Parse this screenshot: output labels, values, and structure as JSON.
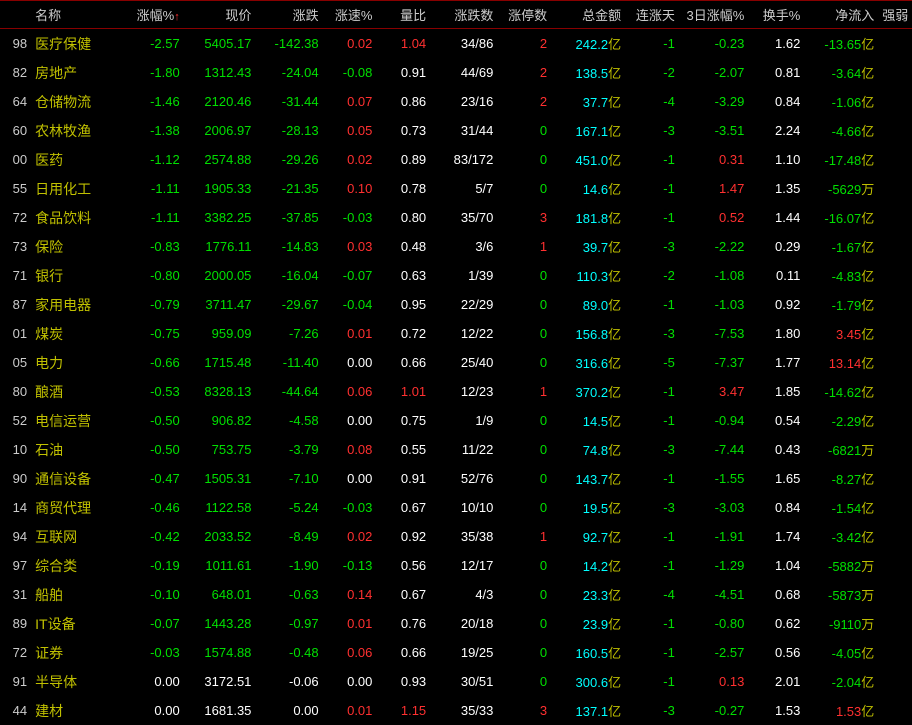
{
  "colors": {
    "bg": "#000000",
    "header_text": "#cccccc",
    "name_text": "#c0c000",
    "red": "#ff3030",
    "green": "#00e000",
    "cyan": "#00ffff",
    "white": "#ffffff",
    "yellow": "#c0c000",
    "gray": "#cccccc",
    "border": "#880000"
  },
  "columns": [
    {
      "key": "code",
      "label": "",
      "align": "right"
    },
    {
      "key": "name",
      "label": "名称",
      "align": "left"
    },
    {
      "key": "pct",
      "label": "涨幅%",
      "arrow": "↑",
      "align": "right"
    },
    {
      "key": "price",
      "label": "现价",
      "align": "right"
    },
    {
      "key": "change",
      "label": "涨跌",
      "align": "right"
    },
    {
      "key": "speed",
      "label": "涨速%",
      "align": "right"
    },
    {
      "key": "ratio",
      "label": "量比",
      "align": "right"
    },
    {
      "key": "updown",
      "label": "涨跌数",
      "align": "right"
    },
    {
      "key": "limit",
      "label": "涨停数",
      "align": "right"
    },
    {
      "key": "amount",
      "label": "总金额",
      "align": "right"
    },
    {
      "key": "days",
      "label": "连涨天",
      "align": "right"
    },
    {
      "key": "pct3",
      "label": "3日涨幅%",
      "align": "right"
    },
    {
      "key": "turn",
      "label": "换手%",
      "align": "right"
    },
    {
      "key": "netin",
      "label": "净流入",
      "align": "right"
    },
    {
      "key": "strong",
      "label": "强弱",
      "align": "right"
    }
  ],
  "unit_yi": "亿",
  "unit_wan": "万",
  "rows": [
    {
      "code": "98",
      "name": "医疗保健",
      "pct": "-2.57",
      "price": "5405.17",
      "change": "-142.38",
      "speed": "0.02",
      "ratio": "1.04",
      "updown": "34/86",
      "limit": "2",
      "amount": "242.2",
      "amount_unit": "亿",
      "days": "-1",
      "pct3": "-0.23",
      "turn": "1.62",
      "netin": "-13.65",
      "netin_unit": "亿"
    },
    {
      "code": "82",
      "name": "房地产",
      "pct": "-1.80",
      "price": "1312.43",
      "change": "-24.04",
      "speed": "-0.08",
      "ratio": "0.91",
      "updown": "44/69",
      "limit": "2",
      "amount": "138.5",
      "amount_unit": "亿",
      "days": "-2",
      "pct3": "-2.07",
      "turn": "0.81",
      "netin": "-3.64",
      "netin_unit": "亿"
    },
    {
      "code": "64",
      "name": "仓储物流",
      "pct": "-1.46",
      "price": "2120.46",
      "change": "-31.44",
      "speed": "0.07",
      "ratio": "0.86",
      "updown": "23/16",
      "limit": "2",
      "amount": "37.7",
      "amount_unit": "亿",
      "days": "-4",
      "pct3": "-3.29",
      "turn": "0.84",
      "netin": "-1.06",
      "netin_unit": "亿"
    },
    {
      "code": "60",
      "name": "农林牧渔",
      "pct": "-1.38",
      "price": "2006.97",
      "change": "-28.13",
      "speed": "0.05",
      "ratio": "0.73",
      "updown": "31/44",
      "limit": "0",
      "amount": "167.1",
      "amount_unit": "亿",
      "days": "-3",
      "pct3": "-3.51",
      "turn": "2.24",
      "netin": "-4.66",
      "netin_unit": "亿"
    },
    {
      "code": "00",
      "name": "医药",
      "pct": "-1.12",
      "price": "2574.88",
      "change": "-29.26",
      "speed": "0.02",
      "ratio": "0.89",
      "updown": "83/172",
      "limit": "0",
      "amount": "451.0",
      "amount_unit": "亿",
      "days": "-1",
      "pct3": "0.31",
      "turn": "1.10",
      "netin": "-17.48",
      "netin_unit": "亿"
    },
    {
      "code": "55",
      "name": "日用化工",
      "pct": "-1.11",
      "price": "1905.33",
      "change": "-21.35",
      "speed": "0.10",
      "ratio": "0.78",
      "updown": "5/7",
      "limit": "0",
      "amount": "14.6",
      "amount_unit": "亿",
      "days": "-1",
      "pct3": "1.47",
      "turn": "1.35",
      "netin": "-5629",
      "netin_unit": "万"
    },
    {
      "code": "72",
      "name": "食品饮料",
      "pct": "-1.11",
      "price": "3382.25",
      "change": "-37.85",
      "speed": "-0.03",
      "ratio": "0.80",
      "updown": "35/70",
      "limit": "3",
      "amount": "181.8",
      "amount_unit": "亿",
      "days": "-1",
      "pct3": "0.52",
      "turn": "1.44",
      "netin": "-16.07",
      "netin_unit": "亿"
    },
    {
      "code": "73",
      "name": "保险",
      "pct": "-0.83",
      "price": "1776.11",
      "change": "-14.83",
      "speed": "0.03",
      "ratio": "0.48",
      "updown": "3/6",
      "limit": "1",
      "amount": "39.7",
      "amount_unit": "亿",
      "days": "-3",
      "pct3": "-2.22",
      "turn": "0.29",
      "netin": "-1.67",
      "netin_unit": "亿"
    },
    {
      "code": "71",
      "name": "银行",
      "pct": "-0.80",
      "price": "2000.05",
      "change": "-16.04",
      "speed": "-0.07",
      "ratio": "0.63",
      "updown": "1/39",
      "limit": "0",
      "amount": "110.3",
      "amount_unit": "亿",
      "days": "-2",
      "pct3": "-1.08",
      "turn": "0.11",
      "netin": "-4.83",
      "netin_unit": "亿"
    },
    {
      "code": "87",
      "name": "家用电器",
      "pct": "-0.79",
      "price": "3711.47",
      "change": "-29.67",
      "speed": "-0.04",
      "ratio": "0.95",
      "updown": "22/29",
      "limit": "0",
      "amount": "89.0",
      "amount_unit": "亿",
      "days": "-1",
      "pct3": "-1.03",
      "turn": "0.92",
      "netin": "-1.79",
      "netin_unit": "亿"
    },
    {
      "code": "01",
      "name": "煤炭",
      "pct": "-0.75",
      "price": "959.09",
      "change": "-7.26",
      "speed": "0.01",
      "ratio": "0.72",
      "updown": "12/22",
      "limit": "0",
      "amount": "156.8",
      "amount_unit": "亿",
      "days": "-3",
      "pct3": "-7.53",
      "turn": "1.80",
      "netin": "3.45",
      "netin_unit": "亿"
    },
    {
      "code": "05",
      "name": "电力",
      "pct": "-0.66",
      "price": "1715.48",
      "change": "-11.40",
      "speed": "0.00",
      "ratio": "0.66",
      "updown": "25/40",
      "limit": "0",
      "amount": "316.6",
      "amount_unit": "亿",
      "days": "-5",
      "pct3": "-7.37",
      "turn": "1.77",
      "netin": "13.14",
      "netin_unit": "亿"
    },
    {
      "code": "80",
      "name": "酿酒",
      "pct": "-0.53",
      "price": "8328.13",
      "change": "-44.64",
      "speed": "0.06",
      "ratio": "1.01",
      "updown": "12/23",
      "limit": "1",
      "amount": "370.2",
      "amount_unit": "亿",
      "days": "-1",
      "pct3": "3.47",
      "turn": "1.85",
      "netin": "-14.62",
      "netin_unit": "亿"
    },
    {
      "code": "52",
      "name": "电信运营",
      "pct": "-0.50",
      "price": "906.82",
      "change": "-4.58",
      "speed": "0.00",
      "ratio": "0.75",
      "updown": "1/9",
      "limit": "0",
      "amount": "14.5",
      "amount_unit": "亿",
      "days": "-1",
      "pct3": "-0.94",
      "turn": "0.54",
      "netin": "-2.29",
      "netin_unit": "亿"
    },
    {
      "code": "10",
      "name": "石油",
      "pct": "-0.50",
      "price": "753.75",
      "change": "-3.79",
      "speed": "0.08",
      "ratio": "0.55",
      "updown": "11/22",
      "limit": "0",
      "amount": "74.8",
      "amount_unit": "亿",
      "days": "-3",
      "pct3": "-7.44",
      "turn": "0.43",
      "netin": "-6821",
      "netin_unit": "万"
    },
    {
      "code": "90",
      "name": "通信设备",
      "pct": "-0.47",
      "price": "1505.31",
      "change": "-7.10",
      "speed": "0.00",
      "ratio": "0.91",
      "updown": "52/76",
      "limit": "0",
      "amount": "143.7",
      "amount_unit": "亿",
      "days": "-1",
      "pct3": "-1.55",
      "turn": "1.65",
      "netin": "-8.27",
      "netin_unit": "亿"
    },
    {
      "code": "14",
      "name": "商贸代理",
      "pct": "-0.46",
      "price": "1122.58",
      "change": "-5.24",
      "speed": "-0.03",
      "ratio": "0.67",
      "updown": "10/10",
      "limit": "0",
      "amount": "19.5",
      "amount_unit": "亿",
      "days": "-3",
      "pct3": "-3.03",
      "turn": "0.84",
      "netin": "-1.54",
      "netin_unit": "亿"
    },
    {
      "code": "94",
      "name": "互联网",
      "pct": "-0.42",
      "price": "2033.52",
      "change": "-8.49",
      "speed": "0.02",
      "ratio": "0.92",
      "updown": "35/38",
      "limit": "1",
      "amount": "92.7",
      "amount_unit": "亿",
      "days": "-1",
      "pct3": "-1.91",
      "turn": "1.74",
      "netin": "-3.42",
      "netin_unit": "亿"
    },
    {
      "code": "97",
      "name": "综合类",
      "pct": "-0.19",
      "price": "1011.61",
      "change": "-1.90",
      "speed": "-0.13",
      "ratio": "0.56",
      "updown": "12/17",
      "limit": "0",
      "amount": "14.2",
      "amount_unit": "亿",
      "days": "-1",
      "pct3": "-1.29",
      "turn": "1.04",
      "netin": "-5882",
      "netin_unit": "万"
    },
    {
      "code": "31",
      "name": "船舶",
      "pct": "-0.10",
      "price": "648.01",
      "change": "-0.63",
      "speed": "0.14",
      "ratio": "0.67",
      "updown": "4/3",
      "limit": "0",
      "amount": "23.3",
      "amount_unit": "亿",
      "days": "-4",
      "pct3": "-4.51",
      "turn": "0.68",
      "netin": "-5873",
      "netin_unit": "万"
    },
    {
      "code": "89",
      "name": "IT设备",
      "pct": "-0.07",
      "price": "1443.28",
      "change": "-0.97",
      "speed": "0.01",
      "ratio": "0.76",
      "updown": "20/18",
      "limit": "0",
      "amount": "23.9",
      "amount_unit": "亿",
      "days": "-1",
      "pct3": "-0.80",
      "turn": "0.62",
      "netin": "-9110",
      "netin_unit": "万"
    },
    {
      "code": "72",
      "name": "证券",
      "pct": "-0.03",
      "price": "1574.88",
      "change": "-0.48",
      "speed": "0.06",
      "ratio": "0.66",
      "updown": "19/25",
      "limit": "0",
      "amount": "160.5",
      "amount_unit": "亿",
      "days": "-1",
      "pct3": "-2.57",
      "turn": "0.56",
      "netin": "-4.05",
      "netin_unit": "亿"
    },
    {
      "code": "91",
      "name": "半导体",
      "pct": "0.00",
      "price": "3172.51",
      "change": "-0.06",
      "speed": "0.00",
      "ratio": "0.93",
      "updown": "30/51",
      "limit": "0",
      "amount": "300.6",
      "amount_unit": "亿",
      "days": "-1",
      "pct3": "0.13",
      "turn": "2.01",
      "netin": "-2.04",
      "netin_unit": "亿"
    },
    {
      "code": "44",
      "name": "建材",
      "pct": "0.00",
      "price": "1681.35",
      "change": "0.00",
      "speed": "0.01",
      "ratio": "1.15",
      "updown": "35/33",
      "limit": "3",
      "amount": "137.1",
      "amount_unit": "亿",
      "days": "-3",
      "pct3": "-0.27",
      "turn": "1.53",
      "netin": "1.53",
      "netin_unit": "亿"
    }
  ]
}
